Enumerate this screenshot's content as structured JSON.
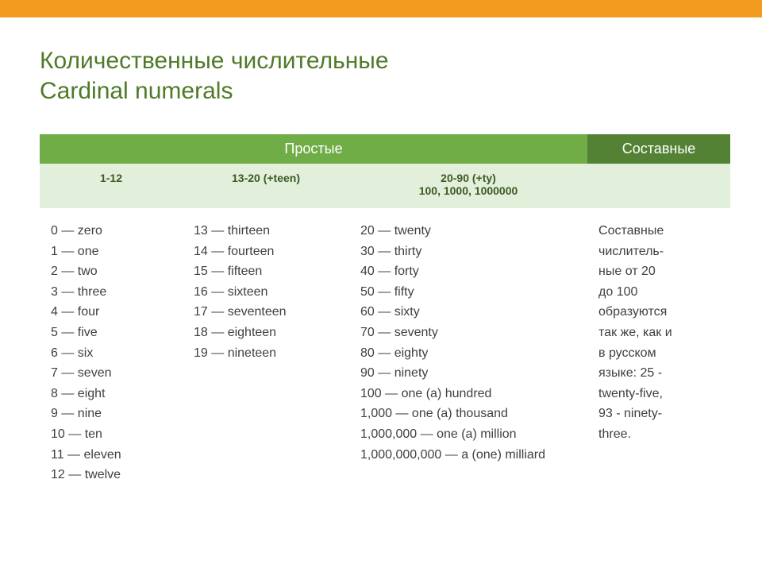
{
  "colors": {
    "top_bar": "#f39b1e",
    "title_text": "#4f7a28",
    "group_simple_bg": "#70ad47",
    "group_compound_bg": "#548235",
    "sub_row_bg": "#e2efda",
    "sub_text": "#3b5a23",
    "body_text": "#404040"
  },
  "title": {
    "line1": "Количественные числительные",
    "line2": "Cardinal numerals"
  },
  "table": {
    "group_headers": {
      "simple": "Простые",
      "compound": "Составные"
    },
    "sub_headers": {
      "col1": "1-12",
      "col2": "13-20 (+teen)",
      "col3_line1": "20-90 (+ty)",
      "col3_line2": "100, 1000, 1000000",
      "col4": ""
    },
    "col1_rows": [
      "0 — zero",
      "1 — one",
      "2 — two",
      "3 — three",
      "4 — four",
      "5 — five",
      "6 — six",
      "7 — seven",
      "8 — eight",
      "9 — nine",
      "10 — ten",
      "11 — eleven",
      "12 — twelve"
    ],
    "col2_rows": [
      "13 — thirteen",
      "14 — fourteen",
      "15 — fifteen",
      "16 — sixteen",
      "17 — seventeen",
      "18 — eighteen",
      "19 — nineteen"
    ],
    "col3_rows": [
      "20 — twenty",
      "30 — thirty",
      "40 — forty",
      "50 — fifty",
      "60 — sixty",
      "70 — seventy",
      "80 — eighty",
      "90 — ninety",
      "100 — one (a) hundred",
      "1,000 — one (a) thousand",
      "1,000,000 — one (a) million",
      "1,000,000,000 — a (one) milliard"
    ],
    "col4_rows": [
      "Составные",
      "числитель-",
      "ные от 20",
      "до 100",
      "образуются",
      "так же, как и",
      "в русском",
      "языке: 25 -",
      "twenty-five,",
      "93 - ninety-",
      "three."
    ]
  }
}
